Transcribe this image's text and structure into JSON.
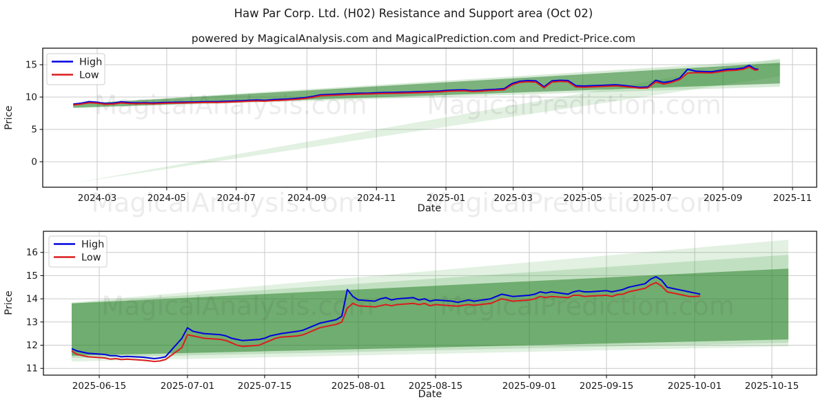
{
  "title": "Haw Par Corp. Ltd. (H02) Resistance and Support area (Oct 02)",
  "subtitle": "powered by MagicalAnalysis.com and MagicalPrediction.com and Predict-Price.com",
  "watermarks": [
    "MagicalAnalysis.com",
    "MagicalPrediction.com"
  ],
  "colors": {
    "high": "#0000dd",
    "low": "#dc1c1c",
    "band_dark": "#1f7a1f",
    "band_mid": "#4da64d",
    "band_light": "#4da64d",
    "grid": "#c9c9c9",
    "spine": "#000000",
    "text": "#1a1a1a",
    "watermark": "#404040"
  },
  "chart_data": [
    {
      "type": "line",
      "name": "long-term-chart",
      "title": "",
      "xlabel": "Date",
      "ylabel": "Price",
      "legend": [
        {
          "label": "High"
        },
        {
          "label": "Low"
        }
      ],
      "legend_position": "upper-left",
      "grid": true,
      "ylim": [
        -3.94,
        17.55
      ],
      "yticks": [
        0,
        5,
        10,
        15
      ],
      "xticks": [
        {
          "date": "2024-03-01",
          "label": "2024-03"
        },
        {
          "date": "2024-05-01",
          "label": "2024-05"
        },
        {
          "date": "2024-07-01",
          "label": "2024-07"
        },
        {
          "date": "2024-09-01",
          "label": "2024-09"
        },
        {
          "date": "2024-11-01",
          "label": "2024-11"
        },
        {
          "date": "2025-01-01",
          "label": "2025-01"
        },
        {
          "date": "2025-03-01",
          "label": "2025-03"
        },
        {
          "date": "2025-05-01",
          "label": "2025-05"
        },
        {
          "date": "2025-07-01",
          "label": "2025-07"
        },
        {
          "date": "2025-09-01",
          "label": "2025-09"
        },
        {
          "date": "2025-11-01",
          "label": "2025-11"
        }
      ],
      "bands": [
        {
          "name": "support-fan-light",
          "color": "#4da64d",
          "opacity": 0.16,
          "points": [
            [
              "2024-02-09",
              -3.3
            ],
            [
              "2025-10-21",
              13.2
            ],
            [
              "2025-10-21",
              16.0
            ]
          ]
        },
        {
          "name": "channel-mid",
          "color": "#4da64d",
          "opacity": 0.22,
          "points": [
            [
              "2024-02-09",
              8.3
            ],
            [
              "2024-02-09",
              8.95
            ],
            [
              "2025-10-21",
              15.75
            ],
            [
              "2025-10-21",
              11.6
            ]
          ]
        },
        {
          "name": "channel-dark",
          "color": "#1f7a1f",
          "opacity": 0.5,
          "points": [
            [
              "2024-02-09",
              8.35
            ],
            [
              "2024-02-09",
              8.9
            ],
            [
              "2025-10-21",
              15.3
            ],
            [
              "2025-10-21",
              12.1
            ]
          ]
        }
      ],
      "points": [
        [
          "2024-02-09",
          8.9,
          8.78
        ],
        [
          "2024-02-16",
          9.05,
          8.92
        ],
        [
          "2024-02-23",
          9.3,
          9.12
        ],
        [
          "2024-03-01",
          9.2,
          9.05
        ],
        [
          "2024-03-08",
          9.0,
          8.88
        ],
        [
          "2024-03-15",
          9.05,
          8.93
        ],
        [
          "2024-03-22",
          9.28,
          9.1
        ],
        [
          "2024-03-29",
          9.15,
          9.0
        ],
        [
          "2024-04-05",
          9.1,
          8.97
        ],
        [
          "2024-04-12",
          9.12,
          9.0
        ],
        [
          "2024-04-19",
          9.08,
          8.95
        ],
        [
          "2024-04-26",
          9.15,
          9.02
        ],
        [
          "2024-05-03",
          9.18,
          9.05
        ],
        [
          "2024-05-10",
          9.2,
          9.07
        ],
        [
          "2024-05-17",
          9.22,
          9.1
        ],
        [
          "2024-05-24",
          9.25,
          9.12
        ],
        [
          "2024-05-31",
          9.27,
          9.15
        ],
        [
          "2024-06-07",
          9.3,
          9.17
        ],
        [
          "2024-06-14",
          9.28,
          9.16
        ],
        [
          "2024-06-21",
          9.33,
          9.2
        ],
        [
          "2024-06-28",
          9.37,
          9.24
        ],
        [
          "2024-07-05",
          9.43,
          9.3
        ],
        [
          "2024-07-12",
          9.5,
          9.36
        ],
        [
          "2024-07-19",
          9.55,
          9.4
        ],
        [
          "2024-07-26",
          9.5,
          9.37
        ],
        [
          "2024-08-02",
          9.6,
          9.46
        ],
        [
          "2024-08-09",
          9.65,
          9.5
        ],
        [
          "2024-08-16",
          9.7,
          9.56
        ],
        [
          "2024-08-23",
          9.8,
          9.66
        ],
        [
          "2024-08-30",
          9.9,
          9.76
        ],
        [
          "2024-09-06",
          10.1,
          9.95
        ],
        [
          "2024-09-13",
          10.35,
          10.2
        ],
        [
          "2024-09-20",
          10.4,
          10.26
        ],
        [
          "2024-09-27",
          10.45,
          10.3
        ],
        [
          "2024-10-04",
          10.5,
          10.36
        ],
        [
          "2024-10-11",
          10.55,
          10.4
        ],
        [
          "2024-10-18",
          10.6,
          10.46
        ],
        [
          "2024-10-25",
          10.62,
          10.48
        ],
        [
          "2024-11-01",
          10.67,
          10.52
        ],
        [
          "2024-11-08",
          10.7,
          10.55
        ],
        [
          "2024-11-15",
          10.72,
          10.57
        ],
        [
          "2024-11-22",
          10.75,
          10.6
        ],
        [
          "2024-11-29",
          10.78,
          10.63
        ],
        [
          "2024-12-06",
          10.82,
          10.67
        ],
        [
          "2024-12-13",
          10.85,
          10.7
        ],
        [
          "2024-12-20",
          10.9,
          10.75
        ],
        [
          "2024-12-27",
          10.95,
          10.8
        ],
        [
          "2025-01-03",
          11.05,
          10.9
        ],
        [
          "2025-01-10",
          11.1,
          10.95
        ],
        [
          "2025-01-17",
          11.12,
          10.97
        ],
        [
          "2025-01-24",
          11.0,
          10.86
        ],
        [
          "2025-01-31",
          11.05,
          10.9
        ],
        [
          "2025-02-07",
          11.15,
          11.0
        ],
        [
          "2025-02-14",
          11.2,
          11.05
        ],
        [
          "2025-02-21",
          11.3,
          11.12
        ],
        [
          "2025-02-28",
          12.1,
          11.88
        ],
        [
          "2025-03-07",
          12.45,
          12.28
        ],
        [
          "2025-03-14",
          12.55,
          12.36
        ],
        [
          "2025-03-21",
          12.5,
          12.3
        ],
        [
          "2025-03-28",
          11.6,
          11.42
        ],
        [
          "2025-04-04",
          12.5,
          12.32
        ],
        [
          "2025-04-11",
          12.6,
          12.42
        ],
        [
          "2025-04-18",
          12.55,
          12.36
        ],
        [
          "2025-04-25",
          11.75,
          11.55
        ],
        [
          "2025-05-02",
          11.7,
          11.52
        ],
        [
          "2025-05-09",
          11.75,
          11.57
        ],
        [
          "2025-05-16",
          11.8,
          11.62
        ],
        [
          "2025-05-23",
          11.85,
          11.67
        ],
        [
          "2025-05-30",
          11.9,
          11.72
        ],
        [
          "2025-06-06",
          11.8,
          11.62
        ],
        [
          "2025-06-13",
          11.65,
          11.5
        ],
        [
          "2025-06-20",
          11.5,
          11.37
        ],
        [
          "2025-06-27",
          11.55,
          11.4
        ],
        [
          "2025-07-04",
          12.6,
          12.35
        ],
        [
          "2025-07-11",
          12.25,
          12.0
        ],
        [
          "2025-07-18",
          12.45,
          12.28
        ],
        [
          "2025-07-25",
          12.9,
          12.7
        ],
        [
          "2025-08-01",
          14.3,
          13.7
        ],
        [
          "2025-08-08",
          14.0,
          13.78
        ],
        [
          "2025-08-15",
          13.95,
          13.76
        ],
        [
          "2025-08-22",
          13.9,
          13.72
        ],
        [
          "2025-08-29",
          14.1,
          13.92
        ],
        [
          "2025-09-05",
          14.3,
          14.1
        ],
        [
          "2025-09-12",
          14.32,
          14.14
        ],
        [
          "2025-09-19",
          14.5,
          14.3
        ],
        [
          "2025-09-24",
          14.9,
          14.66
        ],
        [
          "2025-09-29",
          14.35,
          14.16
        ],
        [
          "2025-10-02",
          14.3,
          14.2
        ]
      ]
    },
    {
      "type": "line",
      "name": "recent-chart",
      "title": "",
      "xlabel": "Date",
      "ylabel": "Price",
      "legend": [
        {
          "label": "High"
        },
        {
          "label": "Low"
        }
      ],
      "legend_position": "upper-left",
      "grid": true,
      "ylim": [
        10.71,
        16.91
      ],
      "yticks": [
        11,
        12,
        13,
        14,
        15,
        16
      ],
      "xticks": [
        {
          "date": "2025-06-15",
          "label": "2025-06-15"
        },
        {
          "date": "2025-07-01",
          "label": "2025-07-01"
        },
        {
          "date": "2025-07-15",
          "label": "2025-07-15"
        },
        {
          "date": "2025-08-01",
          "label": "2025-08-01"
        },
        {
          "date": "2025-08-15",
          "label": "2025-08-15"
        },
        {
          "date": "2025-09-01",
          "label": "2025-09-01"
        },
        {
          "date": "2025-09-15",
          "label": "2025-09-15"
        },
        {
          "date": "2025-10-01",
          "label": "2025-10-01"
        },
        {
          "date": "2025-10-15",
          "label": "2025-10-15"
        }
      ],
      "bands": [
        {
          "name": "support-fan-light",
          "color": "#4da64d",
          "opacity": 0.16,
          "points": [
            [
              "2025-06-10",
              11.3
            ],
            [
              "2025-06-10",
              13.85
            ],
            [
              "2025-10-18",
              16.55
            ],
            [
              "2025-10-18",
              11.95
            ]
          ]
        },
        {
          "name": "channel-mid",
          "color": "#4da64d",
          "opacity": 0.22,
          "points": [
            [
              "2025-06-10",
              11.45
            ],
            [
              "2025-06-10",
              13.82
            ],
            [
              "2025-10-18",
              15.9
            ],
            [
              "2025-10-18",
              12.1
            ]
          ]
        },
        {
          "name": "channel-dark",
          "color": "#1f7a1f",
          "opacity": 0.5,
          "points": [
            [
              "2025-06-10",
              11.55
            ],
            [
              "2025-06-10",
              13.8
            ],
            [
              "2025-10-18",
              15.3
            ],
            [
              "2025-10-18",
              12.25
            ]
          ]
        }
      ],
      "points": [
        [
          "2025-06-10",
          11.85,
          11.75
        ],
        [
          "2025-06-11",
          11.75,
          11.6
        ],
        [
          "2025-06-12",
          11.7,
          11.55
        ],
        [
          "2025-06-13",
          11.65,
          11.5
        ],
        [
          "2025-06-16",
          11.6,
          11.45
        ],
        [
          "2025-06-17",
          11.55,
          11.4
        ],
        [
          "2025-06-18",
          11.55,
          11.42
        ],
        [
          "2025-06-19",
          11.5,
          11.38
        ],
        [
          "2025-06-20",
          11.52,
          11.4
        ],
        [
          "2025-06-23",
          11.48,
          11.35
        ],
        [
          "2025-06-24",
          11.45,
          11.33
        ],
        [
          "2025-06-25",
          11.42,
          11.3
        ],
        [
          "2025-06-26",
          11.45,
          11.32
        ],
        [
          "2025-06-27",
          11.5,
          11.38
        ],
        [
          "2025-06-30",
          12.3,
          11.9
        ],
        [
          "2025-07-01",
          12.75,
          12.45
        ],
        [
          "2025-07-02",
          12.6,
          12.4
        ],
        [
          "2025-07-03",
          12.55,
          12.35
        ],
        [
          "2025-07-04",
          12.5,
          12.3
        ],
        [
          "2025-07-07",
          12.45,
          12.25
        ],
        [
          "2025-07-08",
          12.4,
          12.2
        ],
        [
          "2025-07-09",
          12.3,
          12.1
        ],
        [
          "2025-07-10",
          12.25,
          12.0
        ],
        [
          "2025-07-11",
          12.2,
          11.95
        ],
        [
          "2025-07-14",
          12.25,
          12.0
        ],
        [
          "2025-07-15",
          12.3,
          12.1
        ],
        [
          "2025-07-16",
          12.4,
          12.2
        ],
        [
          "2025-07-17",
          12.45,
          12.3
        ],
        [
          "2025-07-18",
          12.5,
          12.35
        ],
        [
          "2025-07-21",
          12.6,
          12.4
        ],
        [
          "2025-07-22",
          12.65,
          12.45
        ],
        [
          "2025-07-23",
          12.75,
          12.55
        ],
        [
          "2025-07-24",
          12.85,
          12.65
        ],
        [
          "2025-07-25",
          12.95,
          12.75
        ],
        [
          "2025-07-28",
          13.1,
          12.9
        ],
        [
          "2025-07-29",
          13.25,
          13.0
        ],
        [
          "2025-07-30",
          14.4,
          13.6
        ],
        [
          "2025-07-31",
          14.1,
          13.8
        ],
        [
          "2025-08-01",
          13.95,
          13.7
        ],
        [
          "2025-08-04",
          13.9,
          13.65
        ],
        [
          "2025-08-05",
          14.0,
          13.7
        ],
        [
          "2025-08-06",
          14.05,
          13.75
        ],
        [
          "2025-08-07",
          13.95,
          13.7
        ],
        [
          "2025-08-08",
          14.0,
          13.75
        ],
        [
          "2025-08-11",
          14.05,
          13.8
        ],
        [
          "2025-08-12",
          13.95,
          13.75
        ],
        [
          "2025-08-13",
          14.0,
          13.8
        ],
        [
          "2025-08-14",
          13.9,
          13.7
        ],
        [
          "2025-08-15",
          13.95,
          13.75
        ],
        [
          "2025-08-18",
          13.9,
          13.7
        ],
        [
          "2025-08-19",
          13.85,
          13.68
        ],
        [
          "2025-08-20",
          13.9,
          13.72
        ],
        [
          "2025-08-21",
          13.95,
          13.75
        ],
        [
          "2025-08-22",
          13.9,
          13.72
        ],
        [
          "2025-08-25",
          14.0,
          13.8
        ],
        [
          "2025-08-26",
          14.1,
          13.9
        ],
        [
          "2025-08-27",
          14.2,
          14.0
        ],
        [
          "2025-08-28",
          14.15,
          13.95
        ],
        [
          "2025-08-29",
          14.1,
          13.9
        ],
        [
          "2025-09-01",
          14.15,
          13.95
        ],
        [
          "2025-09-02",
          14.2,
          14.0
        ],
        [
          "2025-09-03",
          14.3,
          14.1
        ],
        [
          "2025-09-04",
          14.25,
          14.05
        ],
        [
          "2025-09-05",
          14.3,
          14.1
        ],
        [
          "2025-09-08",
          14.2,
          14.05
        ],
        [
          "2025-09-09",
          14.3,
          14.15
        ],
        [
          "2025-09-10",
          14.35,
          14.15
        ],
        [
          "2025-09-11",
          14.3,
          14.1
        ],
        [
          "2025-09-12",
          14.3,
          14.12
        ],
        [
          "2025-09-15",
          14.35,
          14.15
        ],
        [
          "2025-09-16",
          14.3,
          14.1
        ],
        [
          "2025-09-17",
          14.35,
          14.18
        ],
        [
          "2025-09-18",
          14.4,
          14.2
        ],
        [
          "2025-09-19",
          14.5,
          14.3
        ],
        [
          "2025-09-22",
          14.65,
          14.45
        ],
        [
          "2025-09-23",
          14.85,
          14.6
        ],
        [
          "2025-09-24",
          14.95,
          14.7
        ],
        [
          "2025-09-25",
          14.8,
          14.55
        ],
        [
          "2025-09-26",
          14.5,
          14.3
        ],
        [
          "2025-09-29",
          14.35,
          14.15
        ],
        [
          "2025-09-30",
          14.3,
          14.1
        ],
        [
          "2025-10-01",
          14.25,
          14.1
        ],
        [
          "2025-10-02",
          14.2,
          14.12
        ]
      ]
    }
  ]
}
